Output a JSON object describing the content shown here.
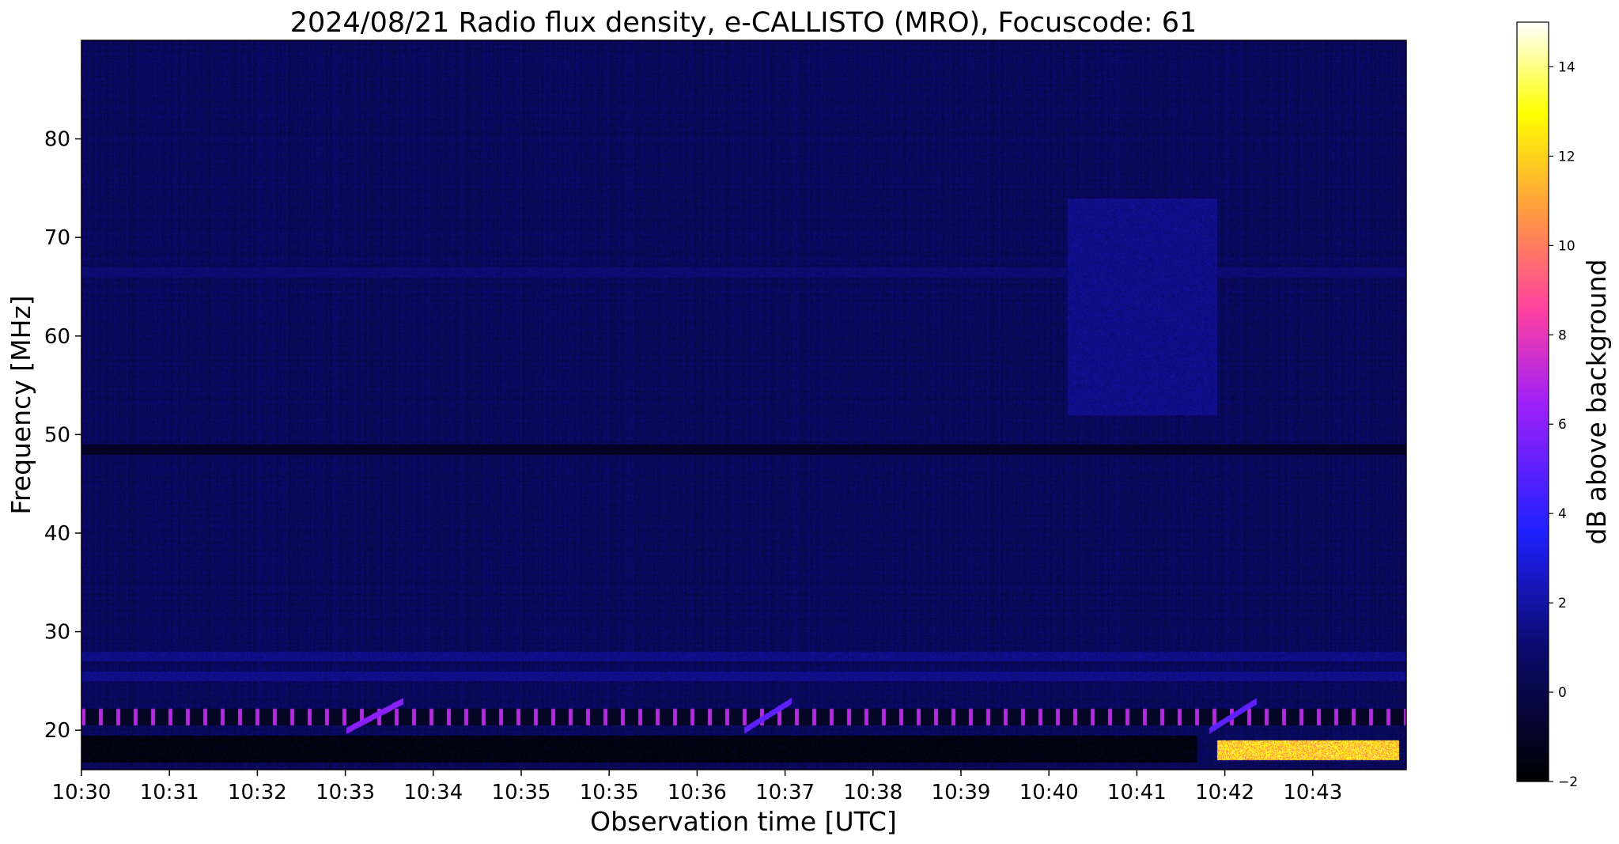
{
  "chart_data": {
    "type": "heatmap",
    "title": "2024/08/21  Radio flux density, e-CALLISTO (MRO), Focuscode: 61",
    "xlabel": "Observation time [UTC]",
    "ylabel": "Frequency [MHz]",
    "x_tick_labels": [
      "10:30",
      "10:31",
      "10:32",
      "10:33",
      "10:34",
      "10:35",
      "10:35",
      "10:36",
      "10:37",
      "10:38",
      "10:39",
      "10:40",
      "10:41",
      "10:42",
      "10:43"
    ],
    "y_ticks": [
      20,
      30,
      40,
      50,
      60,
      70,
      80
    ],
    "ylim": [
      16,
      90
    ],
    "colorbar": {
      "label": "dB above background",
      "ticks": [
        -2,
        0,
        2,
        4,
        6,
        8,
        10,
        12,
        14
      ],
      "range": [
        -2,
        15
      ],
      "colormap": "gnuplot2"
    },
    "background_level_db": 0.5,
    "features": [
      {
        "feature": "interference band",
        "freq_mhz": [
          48,
          49
        ],
        "level_db": -1
      },
      {
        "feature": "interference band",
        "freq_mhz": [
          66,
          67
        ],
        "level_db": 1
      },
      {
        "feature": "interference band",
        "freq_mhz": [
          27,
          28
        ],
        "level_db": 1.5
      },
      {
        "feature": "interference band",
        "freq_mhz": [
          25,
          26
        ],
        "level_db": 1.5
      },
      {
        "feature": "pulsed interference",
        "freq_mhz": [
          20.5,
          22.2
        ],
        "level_db": 7
      },
      {
        "feature": "dark band",
        "freq_mhz": [
          16.8,
          19.5
        ],
        "level_db": -1.5
      },
      {
        "feature": "drifting burst",
        "time": [
          "10:32:48",
          "10:33:24"
        ],
        "freq_mhz": [
          20,
          23
        ],
        "level_db": 6
      },
      {
        "feature": "drifting burst",
        "time": [
          "10:37:00",
          "10:37:30"
        ],
        "freq_mhz": [
          20,
          23
        ],
        "level_db": 5
      },
      {
        "feature": "drifting burst",
        "time": [
          "10:41:55",
          "10:42:25"
        ],
        "freq_mhz": [
          20,
          23
        ],
        "level_db": 5
      },
      {
        "feature": "enhanced emission",
        "time": [
          "10:40:25",
          "10:42:00"
        ],
        "freq_mhz": [
          52,
          74
        ],
        "level_db": 1.5
      },
      {
        "feature": "strong emission",
        "time": [
          "10:42:00",
          "10:43:55"
        ],
        "freq_mhz": [
          17,
          19
        ],
        "level_db": 14
      }
    ]
  }
}
